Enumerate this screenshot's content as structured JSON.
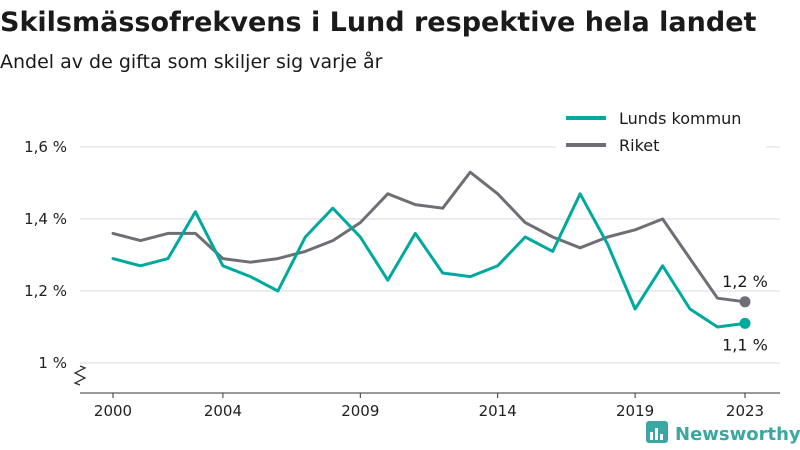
{
  "chart_data": {
    "type": "line",
    "title": "Skilsmässofrekvens i Lund respektive hela landet",
    "subtitle": "Andel av de gifta som skiljer sig varje år",
    "x": [
      2000,
      2001,
      2002,
      2003,
      2004,
      2005,
      2006,
      2007,
      2008,
      2009,
      2010,
      2011,
      2012,
      2013,
      2014,
      2015,
      2016,
      2017,
      2018,
      2019,
      2020,
      2021,
      2022,
      2023
    ],
    "x_ticks": [
      2000,
      2004,
      2009,
      2014,
      2019,
      2023
    ],
    "x_tick_labels": [
      "2000",
      "2004",
      "2009",
      "2014",
      "2019",
      "2023"
    ],
    "y_ticks": [
      1.0,
      1.2,
      1.4,
      1.6
    ],
    "y_tick_labels": [
      "1 %",
      "1,2 %",
      "1,4 %",
      "1,6 %"
    ],
    "ylim": [
      1.0,
      1.6
    ],
    "y_axis_break": true,
    "grid": true,
    "legend_position": "top-right",
    "series": [
      {
        "name": "Lunds kommun",
        "color": "#00a99d",
        "values": [
          1.29,
          1.27,
          1.29,
          1.42,
          1.27,
          1.24,
          1.2,
          1.35,
          1.43,
          1.35,
          1.23,
          1.36,
          1.25,
          1.24,
          1.27,
          1.35,
          1.31,
          1.47,
          1.33,
          1.15,
          1.27,
          1.15,
          1.1,
          1.11
        ],
        "end_label": "1,1 %"
      },
      {
        "name": "Riket",
        "color": "#6f6e74",
        "values": [
          1.36,
          1.34,
          1.36,
          1.36,
          1.29,
          1.28,
          1.29,
          1.31,
          1.34,
          1.39,
          1.47,
          1.44,
          1.43,
          1.53,
          1.47,
          1.39,
          1.35,
          1.32,
          1.35,
          1.37,
          1.4,
          1.29,
          1.18,
          1.17
        ],
        "end_label": "1,2 %"
      }
    ]
  },
  "brand": {
    "name": "Newsworthy",
    "color": "#3aa8a0",
    "icon": "bar-chart-logo-icon"
  }
}
